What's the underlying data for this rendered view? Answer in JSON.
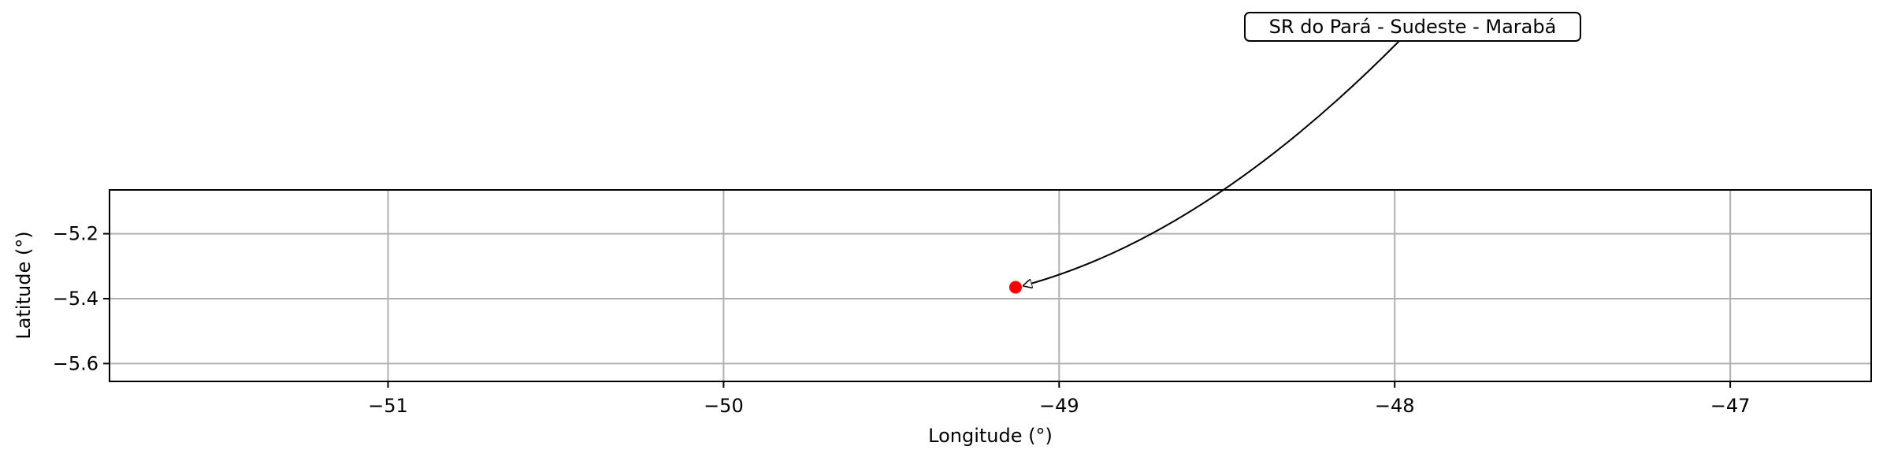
{
  "chart_data": {
    "type": "scatter",
    "title": "",
    "xlabel": "Longitude (°)",
    "ylabel": "Latitude (°)",
    "xlim": [
      -51.83,
      -46.58
    ],
    "ylim": [
      -5.655,
      -5.065
    ],
    "xticks": [
      -51,
      -50,
      -49,
      -48,
      -47
    ],
    "xtick_labels": [
      "−51",
      "−50",
      "−49",
      "−48",
      "−47"
    ],
    "yticks": [
      -5.2,
      -5.4,
      -5.6
    ],
    "ytick_labels": [
      "−5.2",
      "−5.4",
      "−5.6"
    ],
    "grid": true,
    "points": [
      {
        "x": -49.13,
        "y": -5.365,
        "color": "#ff0000"
      }
    ],
    "annotations": [
      {
        "text": "SR do Pará - Sudeste  - Marabá",
        "point_index": 0
      }
    ]
  }
}
